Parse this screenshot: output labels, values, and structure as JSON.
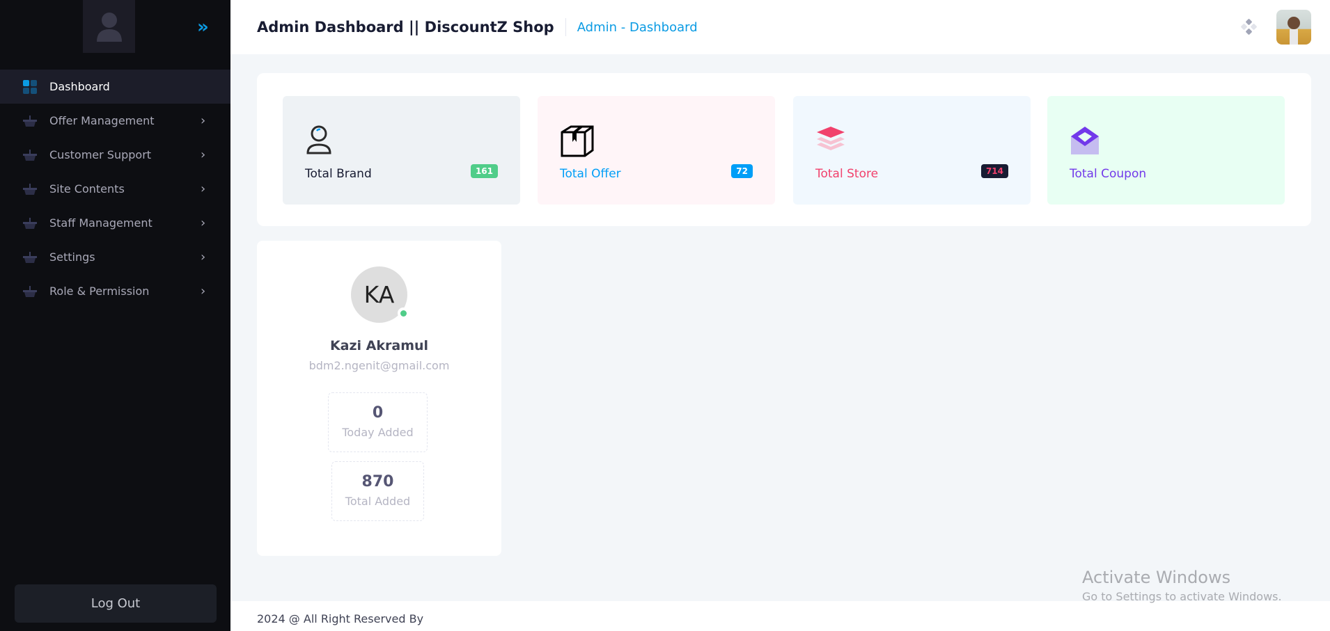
{
  "header": {
    "title": "Admin Dashboard || DiscountZ Shop",
    "breadcrumb": "Admin - Dashboard"
  },
  "sidebar": {
    "items": [
      {
        "label": "Dashboard",
        "icon": "dashboard-grid-icon",
        "active": true
      },
      {
        "label": "Offer Management",
        "icon": "basket-icon"
      },
      {
        "label": "Customer Support",
        "icon": "basket-icon"
      },
      {
        "label": "Site Contents",
        "icon": "basket-icon"
      },
      {
        "label": "Staff Management",
        "icon": "basket-icon"
      },
      {
        "label": "Settings",
        "icon": "basket-icon"
      },
      {
        "label": "Role & Permission",
        "icon": "basket-icon"
      }
    ],
    "logout_label": "Log Out"
  },
  "stats": [
    {
      "label": "Total Brand",
      "count": "161",
      "bg": "#eef2f5",
      "color": "#181c32",
      "badge": "#50cd89"
    },
    {
      "label": "Total Offer",
      "count": "72",
      "bg": "#fff5f8",
      "color": "#009ef7",
      "badge": "#009ef7"
    },
    {
      "label": "Total Store",
      "count": "714",
      "bg": "#f1f8fe",
      "color": "#f1416c",
      "badge": "#181c32"
    },
    {
      "label": "Total Coupon",
      "bg": "#e8fff3",
      "color": "#7239ea"
    }
  ],
  "profile": {
    "initials": "KA",
    "name": "Kazi Akramul",
    "email": "bdm2.ngenit@gmail.com",
    "today_value": "0",
    "today_label": "Today Added",
    "total_value": "870",
    "total_label": "Total Added"
  },
  "footer": {
    "text": "2024 @ All Right Reserved By"
  },
  "watermark": {
    "title": "Activate Windows",
    "subtitle": "Go to Settings to activate Windows."
  }
}
